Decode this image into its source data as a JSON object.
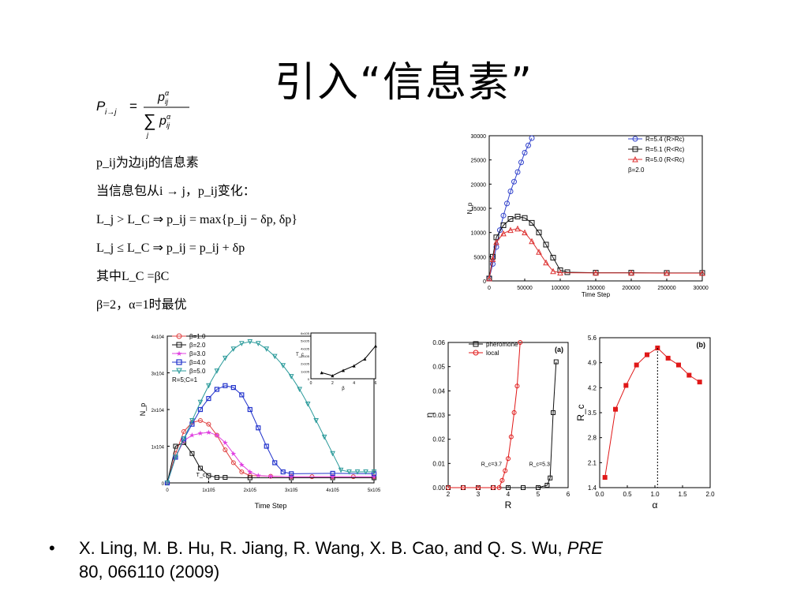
{
  "slide": {
    "title": "引入“信息素”",
    "formulas": {
      "prob_lhs": "P",
      "prob_sub": "i→j",
      "prob_num": "p",
      "prob_den_sum": "∑",
      "prob_den_sub": "j",
      "line1": "p_ij为边ij的信息素",
      "line2": "当信息包从i → j，p_ij变化：",
      "line3": "L_j > L_C ⇒ p_ij = max{p_ij − δp, δp}",
      "line4": "L_j ≤ L_C ⇒ p_ij = p_ij + δp",
      "line5": "其中L_C =βC",
      "line6": "β=2，α=1时最优"
    },
    "reference": {
      "bullet": "•",
      "text_plain": "X. Ling, M. B. Hu, R. Jiang, R. Wang, X. B. Cao, and Q. S. Wu, ",
      "journal": "PRE",
      "text_tail": "80, 066110 (2009)"
    }
  },
  "chart_data": [
    {
      "id": "top-right",
      "type": "scatter",
      "xlabel": "Time Step",
      "ylabel": "N_p",
      "xlim": [
        0,
        300000
      ],
      "ylim": [
        0,
        30000
      ],
      "xticks": [
        "0",
        "50000",
        "100000",
        "150000",
        "200000",
        "250000",
        "300000"
      ],
      "yticks": [
        "0",
        "5000",
        "10000",
        "15000",
        "20000",
        "25000",
        "30000"
      ],
      "legend_position": "top-right",
      "legend_note": "β=2.0",
      "series": [
        {
          "name": "R=5.4 (R>Rc)",
          "color": "#3344cc",
          "marker": "circle",
          "x": [
            0,
            5000,
            10000,
            15000,
            20000,
            25000,
            30000,
            35000,
            40000,
            45000,
            50000,
            55000,
            60000
          ],
          "y": [
            500,
            3500,
            7000,
            10500,
            13500,
            16000,
            18500,
            20500,
            22500,
            24500,
            26500,
            28000,
            29500
          ]
        },
        {
          "name": "R=5.1 (R<Rc)",
          "color": "#111111",
          "marker": "square",
          "x": [
            0,
            5000,
            10000,
            20000,
            30000,
            40000,
            50000,
            60000,
            70000,
            80000,
            90000,
            100000,
            110000,
            150000,
            200000,
            250000,
            300000
          ],
          "y": [
            500,
            5000,
            9000,
            11500,
            12800,
            13300,
            13000,
            12000,
            10000,
            7500,
            4800,
            2200,
            1800,
            1700,
            1700,
            1650,
            1650
          ]
        },
        {
          "name": "R=5.0 (R<Rc)",
          "color": "#dd3333",
          "marker": "triangle",
          "x": [
            0,
            5000,
            10000,
            20000,
            30000,
            40000,
            50000,
            60000,
            70000,
            80000,
            90000,
            100000,
            150000,
            200000,
            250000,
            300000
          ],
          "y": [
            500,
            4500,
            8000,
            9800,
            10500,
            10800,
            10000,
            8200,
            6000,
            3800,
            2000,
            1700,
            1650,
            1650,
            1600,
            1600
          ]
        }
      ]
    },
    {
      "id": "bottom-left",
      "type": "line",
      "xlabel": "Time Step",
      "ylabel": "N_p",
      "xlim": [
        0,
        500000
      ],
      "ylim": [
        0,
        40000
      ],
      "xticks": [
        "0",
        "1x10^5",
        "2x10^5",
        "3x10^5",
        "4x10^5",
        "5x10^5"
      ],
      "yticks": [
        "0",
        "1x10^4",
        "2x10^4",
        "3x10^4",
        "4x10^4"
      ],
      "legend_position": "top-left",
      "legend_note": "R=5;C=1",
      "annotation": "T_c",
      "series": [
        {
          "name": "β=1.0",
          "color": "#e04040",
          "marker": "circle",
          "x": [
            0,
            20000,
            40000,
            60000,
            80000,
            100000,
            120000,
            140000,
            160000,
            180000,
            200000,
            250000,
            300000,
            350000,
            400000,
            450000,
            500000
          ],
          "y": [
            0,
            8000,
            14000,
            16500,
            17000,
            16000,
            13000,
            9000,
            5500,
            3000,
            2000,
            1800,
            1700,
            1700,
            1700,
            1700,
            1700
          ]
        },
        {
          "name": "β=2.0",
          "color": "#111111",
          "marker": "square",
          "x": [
            0,
            20000,
            40000,
            60000,
            80000,
            100000,
            120000,
            140000,
            200000,
            300000,
            400000,
            500000
          ],
          "y": [
            0,
            10000,
            11000,
            8000,
            4000,
            2000,
            1500,
            1500,
            1400,
            1400,
            1400,
            1400
          ]
        },
        {
          "name": "β=3.0",
          "color": "#e040e0",
          "marker": "star",
          "x": [
            0,
            20000,
            40000,
            60000,
            80000,
            100000,
            120000,
            140000,
            160000,
            180000,
            200000,
            220000,
            250000,
            300000,
            400000,
            500000
          ],
          "y": [
            0,
            7000,
            11500,
            13000,
            13500,
            13800,
            13000,
            11000,
            8000,
            5000,
            3000,
            2000,
            1800,
            1700,
            1700,
            1700
          ]
        },
        {
          "name": "β=4.0",
          "color": "#2233cc",
          "marker": "x-square",
          "x": [
            0,
            20000,
            40000,
            60000,
            80000,
            100000,
            120000,
            140000,
            160000,
            180000,
            200000,
            220000,
            240000,
            260000,
            280000,
            300000,
            400000,
            500000
          ],
          "y": [
            0,
            7000,
            12000,
            16000,
            20000,
            23000,
            25500,
            26500,
            26000,
            24000,
            20000,
            15000,
            10000,
            5500,
            3000,
            2500,
            2600,
            2500
          ]
        },
        {
          "name": "β=5.0",
          "color": "#2a9a9a",
          "marker": "triangle-down",
          "x": [
            0,
            20000,
            40000,
            60000,
            80000,
            100000,
            120000,
            140000,
            160000,
            180000,
            200000,
            220000,
            240000,
            260000,
            280000,
            300000,
            320000,
            340000,
            360000,
            380000,
            400000,
            420000,
            440000,
            460000,
            480000,
            500000
          ],
          "y": [
            0,
            7000,
            12000,
            17000,
            22000,
            26500,
            30500,
            34000,
            36500,
            38000,
            38500,
            38000,
            36500,
            34500,
            32000,
            29000,
            25500,
            21500,
            17000,
            12500,
            8000,
            3500,
            3000,
            3000,
            3000,
            3000
          ]
        }
      ],
      "inset": {
        "xlabel": "β",
        "ylabel": "T_c",
        "xlim": [
          0,
          6
        ],
        "ylim": [
          0,
          600000
        ],
        "xticks": [
          "0",
          "2",
          "4",
          "6"
        ],
        "yticks": [
          "0",
          "1x10^5",
          "2x10^5",
          "3x10^5",
          "4x10^5",
          "5x10^5",
          "6x10^5"
        ],
        "series": [
          {
            "name": "",
            "x": [
              1,
              2,
              3,
              4,
              5,
              6
            ],
            "y": [
              80000,
              40000,
              110000,
              170000,
              260000,
              430000
            ]
          }
        ]
      }
    },
    {
      "id": "panel-a",
      "type": "line",
      "panel_label": "(a)",
      "xlabel": "R",
      "ylabel": "η",
      "xlim": [
        2,
        6
      ],
      "ylim": [
        0,
        0.06
      ],
      "xticks": [
        "2",
        "3",
        "4",
        "5",
        "6"
      ],
      "yticks": [
        "0.00",
        "0.01",
        "0.02",
        "0.03",
        "0.04",
        "0.05",
        "0.06"
      ],
      "legend_position": "top-left",
      "annotations": [
        "R_c=3.7",
        "R_c=5.3"
      ],
      "series": [
        {
          "name": "pheromone",
          "color": "#111111",
          "marker": "square",
          "x": [
            2,
            2.5,
            3,
            3.5,
            4,
            4.5,
            5,
            5.3,
            5.4,
            5.5,
            5.6
          ],
          "y": [
            0,
            0,
            0,
            0,
            0,
            0,
            0,
            0.001,
            0.004,
            0.031,
            0.052
          ]
        },
        {
          "name": "local",
          "color": "#e01818",
          "marker": "circle",
          "x": [
            2,
            2.5,
            3,
            3.5,
            3.7,
            3.8,
            3.9,
            4.0,
            4.1,
            4.2,
            4.3,
            4.4
          ],
          "y": [
            0,
            0,
            0,
            0,
            0,
            0.003,
            0.007,
            0.012,
            0.021,
            0.031,
            0.042,
            0.06
          ]
        }
      ]
    },
    {
      "id": "panel-b",
      "type": "line",
      "panel_label": "(b)",
      "xlabel": "α",
      "ylabel": "R_c",
      "xlim": [
        -0.1,
        2.0
      ],
      "ylim": [
        1.2,
        5.6
      ],
      "xticks": [
        "0.0",
        "0.5",
        "1.0",
        "1.5",
        "2.0"
      ],
      "yticks": [
        "1.4",
        "2.1",
        "2.8",
        "3.5",
        "4.2",
        "4.9",
        "5.6"
      ],
      "series": [
        {
          "name": "",
          "color": "#e01818",
          "marker": "square",
          "x": [
            0.0,
            0.2,
            0.4,
            0.6,
            0.8,
            1.0,
            1.2,
            1.4,
            1.6,
            1.8
          ],
          "y": [
            1.5,
            3.5,
            4.2,
            4.8,
            5.1,
            5.3,
            5.0,
            4.8,
            4.5,
            4.3
          ]
        }
      ]
    }
  ]
}
